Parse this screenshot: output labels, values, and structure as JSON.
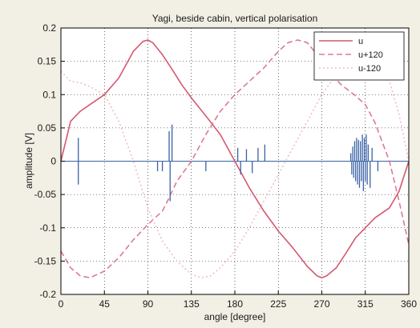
{
  "chart_data": {
    "type": "line",
    "title": "Yagi, beside cabin, vertical polarisation",
    "xlabel": "angle [degree]",
    "ylabel": "amplitude [V]",
    "xlim": [
      0,
      360
    ],
    "ylim": [
      -0.2,
      0.2
    ],
    "xticks": [
      "0",
      "45",
      "90",
      "135",
      "180",
      "225",
      "270",
      "315",
      "360"
    ],
    "yticks": [
      "0.2",
      "0.15",
      "0.1",
      "0.05",
      "0",
      "-0.05",
      "-0.1",
      "-0.15",
      "-0.2"
    ],
    "grid": true,
    "legend_position": "top-right",
    "series": [
      {
        "name": "u",
        "color": "#d4596f",
        "dash": "solid",
        "x": [
          0,
          10,
          20,
          30,
          45,
          60,
          75,
          85,
          90,
          95,
          105,
          115,
          125,
          135,
          150,
          165,
          180,
          195,
          210,
          225,
          240,
          255,
          265,
          270,
          275,
          285,
          295,
          305,
          315,
          325,
          340,
          350,
          360
        ],
        "y": [
          0.0,
          0.06,
          0.075,
          0.085,
          0.1,
          0.125,
          0.165,
          0.18,
          0.182,
          0.178,
          0.16,
          0.138,
          0.115,
          0.095,
          0.068,
          0.04,
          0.0,
          -0.04,
          -0.075,
          -0.105,
          -0.13,
          -0.158,
          -0.172,
          -0.175,
          -0.172,
          -0.16,
          -0.138,
          -0.115,
          -0.1,
          -0.085,
          -0.07,
          -0.045,
          0.0
        ]
      },
      {
        "name": "u+120",
        "color": "#dd7a92",
        "dash": "dashed",
        "x": [
          0,
          10,
          20,
          30,
          45,
          60,
          75,
          90,
          105,
          112,
          120,
          135,
          150,
          165,
          180,
          195,
          210,
          225,
          235,
          245,
          255,
          265,
          275,
          290,
          305,
          315,
          325,
          340,
          350,
          360
        ],
        "y": [
          -0.135,
          -0.16,
          -0.172,
          -0.175,
          -0.165,
          -0.145,
          -0.118,
          -0.095,
          -0.075,
          -0.055,
          -0.03,
          0.0,
          0.04,
          0.075,
          0.1,
          0.12,
          0.14,
          0.165,
          0.178,
          0.182,
          0.178,
          0.16,
          0.138,
          0.115,
          0.098,
          0.085,
          0.058,
          0.0,
          -0.06,
          -0.125
        ]
      },
      {
        "name": "u-120",
        "color": "#f2bcc6",
        "dash": "dotted",
        "x": [
          0,
          10,
          20,
          30,
          45,
          60,
          75,
          90,
          105,
          120,
          135,
          145,
          155,
          165,
          180,
          195,
          210,
          225,
          240,
          255,
          270,
          285,
          295,
          305,
          315,
          325,
          340,
          350,
          360
        ],
        "y": [
          0.135,
          0.12,
          0.118,
          0.112,
          0.1,
          0.06,
          0.0,
          -0.07,
          -0.12,
          -0.15,
          -0.17,
          -0.175,
          -0.172,
          -0.16,
          -0.135,
          -0.1,
          -0.06,
          -0.02,
          0.02,
          0.06,
          0.1,
          0.13,
          0.15,
          0.17,
          0.175,
          0.16,
          0.12,
          0.07,
          0.0
        ]
      }
    ],
    "stems": {
      "color": "#3a62a6",
      "x": [
        18,
        18,
        100,
        105,
        112,
        113,
        115,
        150,
        183,
        186,
        192,
        198,
        204,
        211,
        300,
        301,
        302,
        303,
        304,
        305,
        306,
        307,
        308,
        309,
        310,
        311,
        312,
        313,
        314,
        315,
        316,
        317,
        318,
        320,
        322,
        328
      ],
      "y": [
        0.035,
        -0.035,
        -0.015,
        -0.015,
        0.045,
        -0.06,
        0.055,
        -0.015,
        0.02,
        -0.02,
        0.018,
        -0.018,
        0.02,
        0.025,
        0.012,
        -0.02,
        0.022,
        -0.025,
        0.03,
        -0.03,
        0.035,
        -0.035,
        0.032,
        -0.04,
        0.03,
        -0.03,
        0.04,
        -0.045,
        0.035,
        -0.03,
        0.04,
        -0.035,
        0.025,
        -0.04,
        0.02,
        -0.015
      ]
    }
  }
}
